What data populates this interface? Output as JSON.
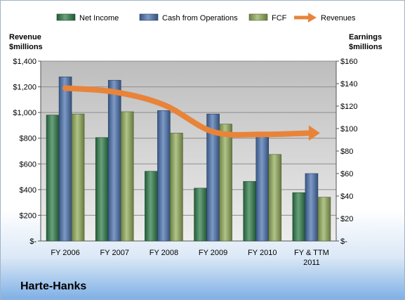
{
  "company": "Harte-Hanks",
  "chart_data": {
    "type": "bar",
    "categories": [
      "FY 2006",
      "FY 2007",
      "FY 2008",
      "FY 2009",
      "FY 2010",
      "FY & TTM 2011"
    ],
    "series": [
      {
        "name": "Net Income",
        "axis": "right",
        "color": "#2e7d4a",
        "values": [
          112,
          92,
          62,
          47,
          53,
          43
        ]
      },
      {
        "name": "Cash from Operations",
        "axis": "right",
        "color": "#4a72b0",
        "values": [
          146,
          143,
          116,
          113,
          95,
          60
        ]
      },
      {
        "name": "FCF",
        "axis": "right",
        "color": "#93ad5a",
        "values": [
          113,
          115,
          96,
          104,
          77,
          39
        ]
      },
      {
        "name": "Revenues",
        "axis": "left",
        "color": "#e8843a",
        "values": [
          1190,
          1160,
          1060,
          850,
          830,
          840
        ]
      }
    ],
    "left_axis": {
      "title": [
        "Revenue",
        "$millions"
      ],
      "ylim": [
        0,
        1400
      ],
      "ticks": [
        "$-",
        "$200",
        "$400",
        "$600",
        "$800",
        "$1,000",
        "$1,200",
        "$1,400"
      ]
    },
    "right_axis": {
      "title": [
        "Earnings",
        "$millions"
      ],
      "ylim": [
        0,
        160
      ],
      "ticks": [
        "$-",
        "$20",
        "$40",
        "$60",
        "$80",
        "$100",
        "$120",
        "$140",
        "$160"
      ]
    },
    "x_tick_labels": [
      [
        "FY 2006"
      ],
      [
        "FY 2007"
      ],
      [
        "FY 2008"
      ],
      [
        "FY 2009"
      ],
      [
        "FY 2010"
      ],
      [
        "FY & TTM",
        "2011"
      ]
    ],
    "legend": [
      "Net Income",
      "Cash from Operations",
      "FCF",
      "Revenues"
    ],
    "legend_position": "top",
    "grid": true
  }
}
